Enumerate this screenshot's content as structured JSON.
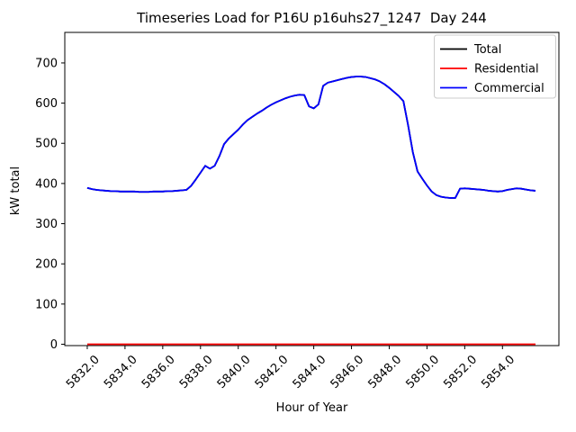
{
  "window": {
    "background": "#ffffff"
  },
  "chart_data": {
    "type": "line",
    "title": "Timeseries Load for P16U p16uhs27_1247  Day 244",
    "xlabel": "Hour of Year",
    "ylabel": "kW total",
    "grid": false,
    "legend_position": "upper right",
    "xlim": [
      5830.81,
      5856.99
    ],
    "ylim": [
      -3.4,
      776
    ],
    "xticks": {
      "values": [
        5832,
        5834,
        5836,
        5838,
        5840,
        5842,
        5844,
        5846,
        5848,
        5850,
        5852,
        5854
      ],
      "labels": [
        "5832.0",
        "5834.0",
        "5836.0",
        "5838.0",
        "5840.0",
        "5842.0",
        "5844.0",
        "5846.0",
        "5848.0",
        "5850.0",
        "5852.0",
        "5854.0"
      ],
      "rotation": 45
    },
    "yticks": {
      "values": [
        0,
        100,
        200,
        300,
        400,
        500,
        600,
        700
      ],
      "labels": [
        "0",
        "100",
        "200",
        "300",
        "400",
        "500",
        "600",
        "700"
      ]
    },
    "x": [
      5832.0,
      5832.25,
      5832.5,
      5832.75,
      5833.0,
      5833.25,
      5833.5,
      5833.75,
      5834.0,
      5834.25,
      5834.5,
      5834.75,
      5835.0,
      5835.25,
      5835.5,
      5835.75,
      5836.0,
      5836.25,
      5836.5,
      5836.75,
      5837.0,
      5837.25,
      5837.5,
      5837.75,
      5838.0,
      5838.25,
      5838.5,
      5838.75,
      5839.0,
      5839.25,
      5839.5,
      5839.75,
      5840.0,
      5840.25,
      5840.5,
      5840.75,
      5841.0,
      5841.25,
      5841.5,
      5841.75,
      5842.0,
      5842.25,
      5842.5,
      5842.75,
      5843.0,
      5843.25,
      5843.5,
      5843.75,
      5844.0,
      5844.25,
      5844.5,
      5844.75,
      5845.0,
      5845.25,
      5845.5,
      5845.75,
      5846.0,
      5846.25,
      5846.5,
      5846.75,
      5847.0,
      5847.25,
      5847.5,
      5847.75,
      5848.0,
      5848.25,
      5848.5,
      5848.75,
      5849.0,
      5849.25,
      5849.5,
      5849.75,
      5850.0,
      5850.25,
      5850.5,
      5850.75,
      5851.0,
      5851.25,
      5851.5,
      5851.75,
      5852.0,
      5852.25,
      5852.5,
      5852.75,
      5853.0,
      5853.25,
      5853.5,
      5853.75,
      5854.0,
      5854.25,
      5854.5,
      5854.75,
      5855.0,
      5855.25,
      5855.5,
      5855.75
    ],
    "series": [
      {
        "name": "Total",
        "color": "#000000",
        "values": [
          389,
          386,
          384,
          383,
          382,
          381,
          381,
          380,
          380,
          380,
          380,
          379,
          379,
          379,
          380,
          380,
          380,
          381,
          381,
          382,
          383,
          384,
          394,
          410,
          427,
          444,
          437,
          444,
          468,
          498,
          512,
          523,
          534,
          547,
          558,
          566,
          574,
          581,
          589,
          596,
          602,
          607,
          612,
          616,
          619,
          621,
          620,
          592,
          587,
          597,
          643,
          651,
          654,
          657,
          660,
          663,
          665,
          666,
          666,
          665,
          662,
          659,
          654,
          647,
          638,
          628,
          618,
          605,
          545,
          478,
          430,
          412,
          395,
          380,
          371,
          367,
          365,
          364,
          364,
          387,
          388,
          387,
          386,
          385,
          384,
          382,
          381,
          380,
          381,
          384,
          386,
          388,
          387,
          385,
          383,
          382
        ]
      },
      {
        "name": "Residential",
        "color": "#ff0000",
        "values": [
          0,
          0,
          0,
          0,
          0,
          0,
          0,
          0,
          0,
          0,
          0,
          0,
          0,
          0,
          0,
          0,
          0,
          0,
          0,
          0,
          0,
          0,
          0,
          0,
          0,
          0,
          0,
          0,
          0,
          0,
          0,
          0,
          0,
          0,
          0,
          0,
          0,
          0,
          0,
          0,
          0,
          0,
          0,
          0,
          0,
          0,
          0,
          0,
          0,
          0,
          0,
          0,
          0,
          0,
          0,
          0,
          0,
          0,
          0,
          0,
          0,
          0,
          0,
          0,
          0,
          0,
          0,
          0,
          0,
          0,
          0,
          0,
          0,
          0,
          0,
          0,
          0,
          0,
          0,
          0,
          0,
          0,
          0,
          0,
          0,
          0,
          0,
          0,
          0,
          0,
          0,
          0,
          0,
          0,
          0,
          0
        ]
      },
      {
        "name": "Commercial",
        "color": "#0000ff",
        "values": [
          389,
          386,
          384,
          383,
          382,
          381,
          381,
          380,
          380,
          380,
          380,
          379,
          379,
          379,
          380,
          380,
          380,
          381,
          381,
          382,
          383,
          384,
          394,
          410,
          427,
          444,
          437,
          444,
          468,
          498,
          512,
          523,
          534,
          547,
          558,
          566,
          574,
          581,
          589,
          596,
          602,
          607,
          612,
          616,
          619,
          621,
          620,
          592,
          587,
          597,
          643,
          651,
          654,
          657,
          660,
          663,
          665,
          666,
          666,
          665,
          662,
          659,
          654,
          647,
          638,
          628,
          618,
          605,
          545,
          478,
          430,
          412,
          395,
          380,
          371,
          367,
          365,
          364,
          364,
          387,
          388,
          387,
          386,
          385,
          384,
          382,
          381,
          380,
          381,
          384,
          386,
          388,
          387,
          385,
          383,
          382
        ]
      }
    ]
  }
}
